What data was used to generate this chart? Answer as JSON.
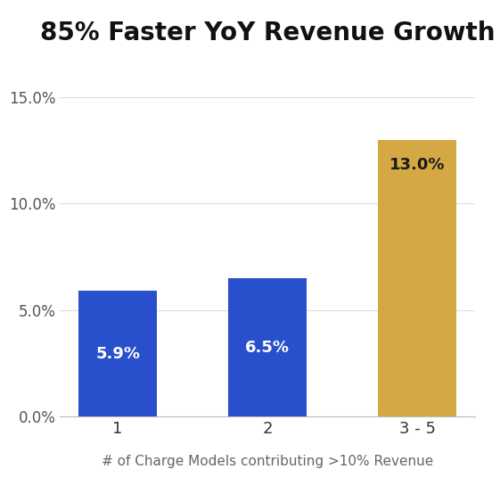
{
  "title": "85% Faster YoY Revenue Growth",
  "categories": [
    "1",
    "2",
    "3 - 5"
  ],
  "values": [
    5.9,
    6.5,
    13.0
  ],
  "bar_colors": [
    "#2850CC",
    "#2850CC",
    "#D4A843"
  ],
  "label_colors": [
    "#FFFFFF",
    "#FFFFFF",
    "#1a1a1a"
  ],
  "bar_labels": [
    "5.9%",
    "6.5%",
    "13.0%"
  ],
  "xlabel": "# of Charge Models contributing >10% Revenue",
  "ylim": [
    0,
    16.5
  ],
  "yticks": [
    0.0,
    5.0,
    10.0,
    15.0
  ],
  "ytick_labels": [
    "0.0%",
    "5.0%",
    "10.0%",
    "15.0%"
  ],
  "title_fontsize": 20,
  "label_fontsize": 13,
  "xlabel_fontsize": 11,
  "tick_fontsize": 12,
  "background_color": "#FFFFFF",
  "grid_color": "#DDDDDD",
  "bar_width": 0.52
}
